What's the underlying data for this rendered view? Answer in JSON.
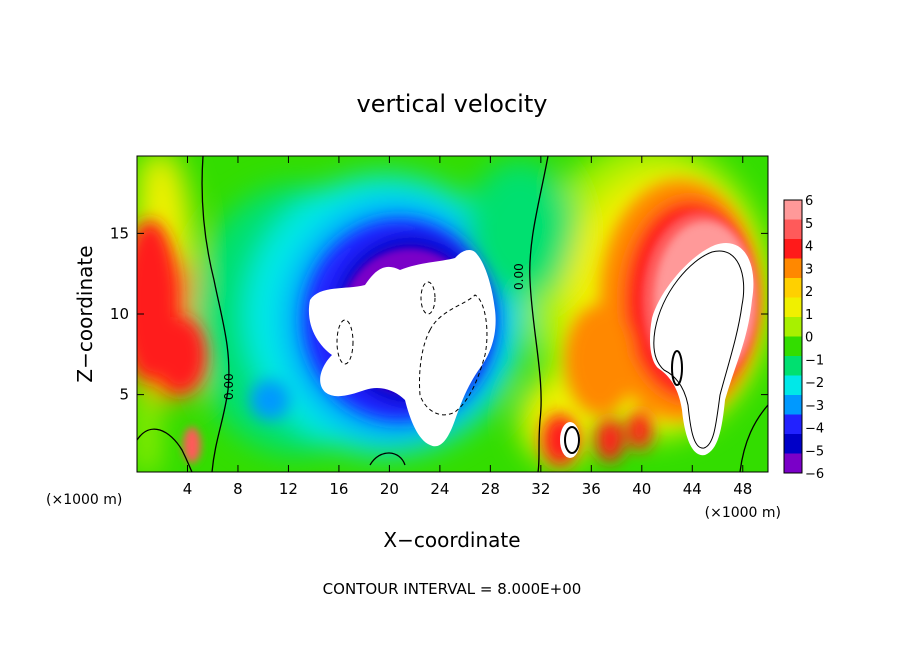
{
  "chart_data": {
    "type": "heatmap",
    "title": "vertical velocity",
    "xlabel": "X−coordinate",
    "ylabel": "Z−coordinate",
    "x_units": "(×1000 m)",
    "y_units": "(×1000 m)",
    "footer": "CONTOUR INTERVAL = 8.000E+00",
    "xlim": [
      0,
      50
    ],
    "ylim": [
      0.2,
      19.8
    ],
    "x_ticks": [
      4,
      8,
      12,
      16,
      20,
      24,
      28,
      32,
      36,
      40,
      44,
      48
    ],
    "y_ticks": [
      5,
      10,
      15
    ],
    "colorbar": {
      "ticks": [
        "6",
        "5",
        "4",
        "3",
        "2",
        "1",
        "0",
        "−1",
        "−2",
        "−3",
        "−4",
        "−5",
        "−6"
      ],
      "colors": [
        "#ff9999",
        "#ff5a5a",
        "#ff1a1a",
        "#ff8800",
        "#ffd000",
        "#f0f000",
        "#a8f000",
        "#33dd00",
        "#00e070",
        "#00e8e8",
        "#0099ff",
        "#2222ff",
        "#0000c8",
        "#7a00c8"
      ]
    },
    "contour_labels": [
      "0.00",
      "0.00"
    ]
  }
}
